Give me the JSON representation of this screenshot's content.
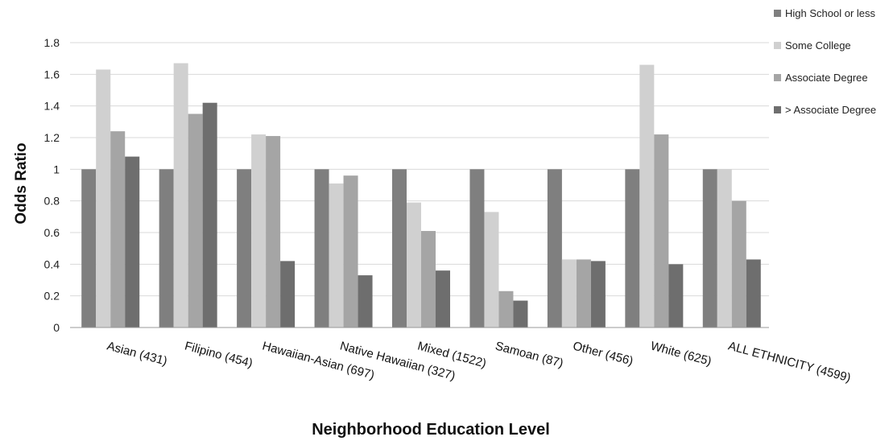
{
  "chart_data": {
    "type": "bar",
    "title": "",
    "xlabel": "Neighborhood Education Level",
    "ylabel": "Odds Ratio",
    "ylim": [
      0,
      1.8
    ],
    "yticks": [
      "0",
      "0.2",
      "0.4",
      "0.6",
      "0.8",
      "1",
      "1.2",
      "1.4",
      "1.6",
      "1.8"
    ],
    "grid": true,
    "legend_position": "top-right",
    "categories": [
      "Asian (431)",
      "Filipino (454)",
      "Hawaiian-Asian (697)",
      "Native Hawaiian (327)",
      "Mixed (1522)",
      "Samoan (87)",
      "Other (456)",
      "White (625)",
      "ALL ETHNICITY (4599)"
    ],
    "series": [
      {
        "name": "High School or less",
        "color": "#7f7f7f",
        "values": [
          1,
          1,
          1,
          1,
          1,
          1,
          1,
          1,
          1
        ]
      },
      {
        "name": "Some College",
        "color": "#d0d0d0",
        "values": [
          1.63,
          1.67,
          1.22,
          0.91,
          0.79,
          0.73,
          0.43,
          1.66,
          1.0
        ]
      },
      {
        "name": "Associate Degree",
        "color": "#a5a5a5",
        "values": [
          1.24,
          1.35,
          1.21,
          0.96,
          0.61,
          0.23,
          0.43,
          1.22,
          0.8
        ]
      },
      {
        "name": "> Associate Degree",
        "color": "#6e6e6e",
        "values": [
          1.08,
          1.42,
          0.42,
          0.33,
          0.36,
          0.17,
          0.42,
          0.4,
          0.43
        ]
      }
    ]
  }
}
